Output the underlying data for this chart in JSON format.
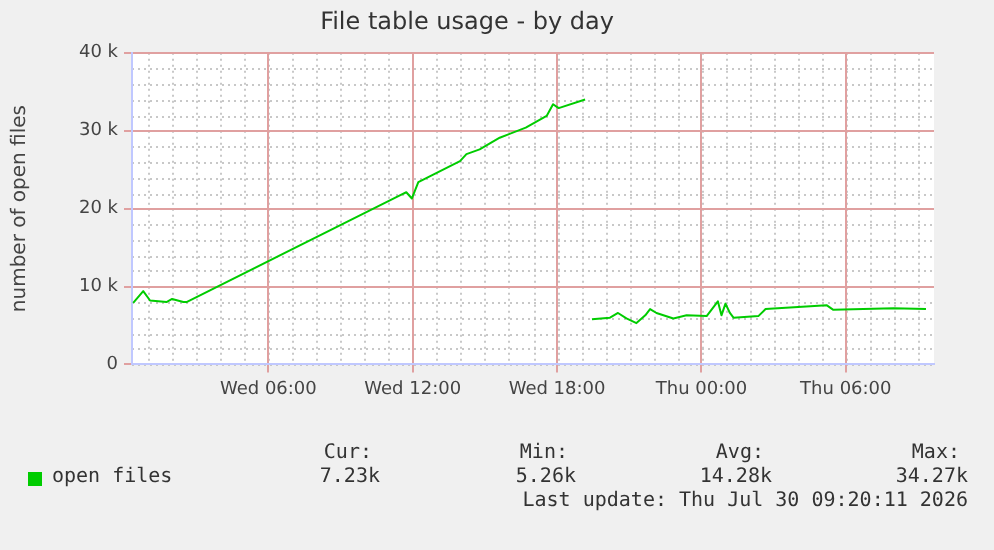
{
  "chart_data": {
    "type": "line",
    "title": "File table usage - by day",
    "ylabel": "number of open files",
    "xlim": [
      "2026-07-29T00:20",
      "2026-07-30T09:40"
    ],
    "xticks": [
      {
        "value": "2026-07-29T06:00",
        "label": "Wed 06:00"
      },
      {
        "value": "2026-07-29T12:00",
        "label": "Wed 12:00"
      },
      {
        "value": "2026-07-29T18:00",
        "label": "Wed 18:00"
      },
      {
        "value": "2026-07-30T00:00",
        "label": "Thu 00:00"
      },
      {
        "value": "2026-07-30T06:00",
        "label": "Thu 06:00"
      }
    ],
    "ylim": [
      0,
      40000
    ],
    "yticks": [
      {
        "value": 0,
        "label": "0"
      },
      {
        "value": 10000,
        "label": "10 k"
      },
      {
        "value": 20000,
        "label": "20 k"
      },
      {
        "value": 30000,
        "label": "30 k"
      },
      {
        "value": 40000,
        "label": "40 k"
      }
    ],
    "grid": true,
    "legend": "bottom left",
    "marker": "none",
    "line_style": "solid",
    "x": [
      "2026-07-29T00:23",
      "2026-07-29T00:48",
      "2026-07-29T01:05",
      "2026-07-29T01:46",
      "2026-07-29T02:00",
      "2026-07-29T02:28",
      "2026-07-29T02:36",
      "2026-07-29T11:28",
      "2026-07-29T11:44",
      "2026-07-29T11:58",
      "2026-07-29T12:14",
      "2026-07-29T13:58",
      "2026-07-29T14:14",
      "2026-07-29T14:47",
      "2026-07-29T15:37",
      "2026-07-29T16:42",
      "2026-07-29T17:34",
      "2026-07-29T17:50",
      "2026-07-29T18:04",
      "2026-07-29T19:10",
      "2026-07-29T19:18",
      "2026-07-29T19:27",
      "2026-07-29T20:12",
      "2026-07-29T20:32",
      "2026-07-29T20:53",
      "2026-07-29T21:18",
      "2026-07-29T21:40",
      "2026-07-29T21:52",
      "2026-07-29T22:08",
      "2026-07-29T22:50",
      "2026-07-29T23:23",
      "2026-07-30T00:13",
      "2026-07-30T00:41",
      "2026-07-30T00:50",
      "2026-07-30T01:00",
      "2026-07-30T01:11",
      "2026-07-30T01:20",
      "2026-07-30T02:22",
      "2026-07-30T02:40",
      "2026-07-30T05:12",
      "2026-07-30T05:29",
      "2026-07-30T07:59",
      "2026-07-30T09:20"
    ],
    "series": [
      {
        "name": "open files",
        "color": "#00cc00",
        "values": [
          7900,
          9400,
          8200,
          8000,
          8400,
          8000,
          8000,
          21700,
          22100,
          21300,
          23400,
          26100,
          27000,
          27600,
          29100,
          30400,
          31900,
          33400,
          32900,
          34000,
          null,
          5800,
          6000,
          6600,
          5900,
          5300,
          6300,
          7100,
          6600,
          5900,
          6300,
          6200,
          8100,
          6300,
          7800,
          6600,
          6000,
          6200,
          7100,
          7600,
          7000,
          7200,
          7100
        ]
      }
    ],
    "annotations": [
      "Cur:",
      "Min:",
      "Avg:",
      "Max:",
      "7.23k",
      "5.26k",
      "14.28k",
      "34.27k",
      "Last update: Thu Jul 30 09:20:11 2026"
    ]
  }
}
